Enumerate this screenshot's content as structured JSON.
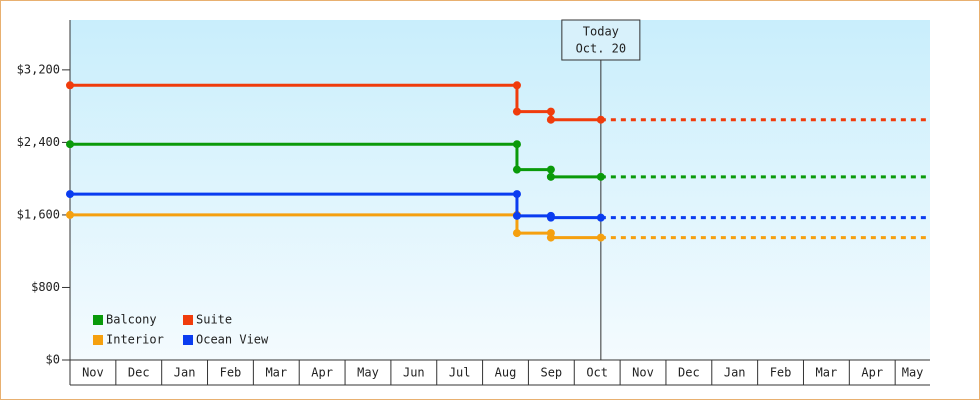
{
  "chart_data": {
    "type": "line",
    "categories": [
      "Nov",
      "Dec",
      "Jan",
      "Feb",
      "Mar",
      "Apr",
      "May",
      "Jun",
      "Jul",
      "Aug",
      "Sep",
      "Oct",
      "Nov",
      "Dec",
      "Jan",
      "Feb",
      "Mar",
      "Apr",
      "May"
    ],
    "xlim": [
      0,
      18.76
    ],
    "ylim": [
      0,
      3750
    ],
    "yticks": [
      {
        "value": 0,
        "label": "$0"
      },
      {
        "value": 800,
        "label": "$800"
      },
      {
        "value": 1600,
        "label": "$1,600"
      },
      {
        "value": 2400,
        "label": "$2,400"
      },
      {
        "value": 3200,
        "label": "$3,200"
      }
    ],
    "series": [
      {
        "name": "Balcony",
        "color": "#0a9a0a",
        "x": [
          0,
          9.75,
          9.75,
          10.49,
          10.49,
          11.58
        ],
        "values": [
          2380,
          2380,
          2100,
          2100,
          2020,
          2020
        ]
      },
      {
        "name": "Suite",
        "color": "#f03c0c",
        "x": [
          0,
          9.75,
          9.75,
          10.49,
          10.49,
          11.58
        ],
        "values": [
          3030,
          3030,
          2740,
          2740,
          2650,
          2650
        ]
      },
      {
        "name": "Interior",
        "color": "#f5a00f",
        "x": [
          0,
          9.75,
          9.75,
          10.49,
          10.49,
          11.58
        ],
        "values": [
          1600,
          1600,
          1400,
          1400,
          1350,
          1350
        ]
      },
      {
        "name": "Ocean View",
        "color": "#0a3cf0",
        "x": [
          0,
          9.75,
          9.75,
          10.49,
          10.49,
          11.58
        ],
        "values": [
          1830,
          1830,
          1590,
          1590,
          1570,
          1570
        ]
      }
    ],
    "annotation": {
      "lines": [
        "Today",
        "Oct. 20"
      ],
      "x": 11.58
    },
    "legend": "lower-left"
  }
}
